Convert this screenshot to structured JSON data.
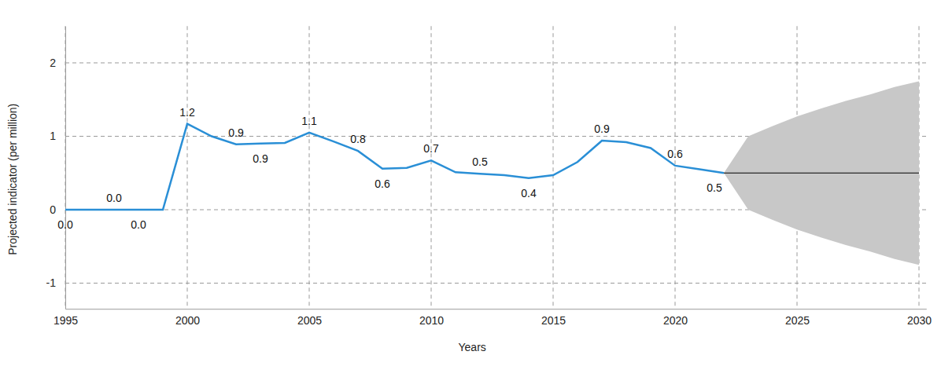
{
  "chart_data": {
    "type": "line",
    "x_label": "Years",
    "y_label": "Projected indicator (per million)",
    "x": [
      1995,
      1996,
      1997,
      1998,
      1999,
      2000,
      2001,
      2002,
      2003,
      2004,
      2005,
      2006,
      2007,
      2008,
      2009,
      2010,
      2011,
      2012,
      2013,
      2014,
      2015,
      2016,
      2017,
      2018,
      2019,
      2020,
      2021,
      2022,
      2023,
      2024,
      2025,
      2026,
      2027,
      2028,
      2029,
      2030
    ],
    "series": [
      {
        "color": "#2a8fd6",
        "line_style": "solid",
        "data_labels": true,
        "values": [
          0,
          0,
          0,
          0,
          0,
          1.17,
          1.0,
          0.89,
          0.9,
          0.91,
          1.05,
          0.93,
          0.8,
          0.56,
          0.57,
          0.67,
          0.51,
          0.49,
          0.47,
          0.43,
          0.47,
          0.65,
          0.94,
          0.92,
          0.84,
          0.6,
          0.55,
          0.5,
          null,
          null,
          null,
          null,
          null,
          null,
          null,
          null
        ],
        "value_labels": [
          "0.0",
          null,
          "0.0",
          "0.0",
          null,
          "1.2",
          null,
          "0.9",
          "0.9",
          null,
          "1.1",
          null,
          "0.8",
          "0.6",
          null,
          "0.7",
          null,
          "0.5",
          null,
          "0.4",
          null,
          null,
          "0.9",
          null,
          null,
          "0.6",
          null,
          "0.5",
          null,
          null,
          null,
          null,
          null,
          null,
          null,
          null
        ]
      },
      {
        "color": "#000000",
        "line_style": "solid",
        "values": [
          null,
          null,
          null,
          null,
          null,
          null,
          null,
          null,
          null,
          null,
          null,
          null,
          null,
          null,
          null,
          null,
          null,
          null,
          null,
          null,
          null,
          null,
          null,
          null,
          null,
          null,
          null,
          0.5,
          0.5,
          0.5,
          0.5,
          0.5,
          0.5,
          0.5,
          0.5,
          0.5
        ]
      }
    ],
    "band": {
      "color": "#c8c8c8",
      "lower": [
        null,
        null,
        null,
        null,
        null,
        null,
        null,
        null,
        null,
        null,
        null,
        null,
        null,
        null,
        null,
        null,
        null,
        null,
        null,
        null,
        null,
        null,
        null,
        null,
        null,
        null,
        null,
        0.5,
        0.0,
        -0.14,
        -0.27,
        -0.38,
        -0.48,
        -0.57,
        -0.67,
        -0.75
      ],
      "upper": [
        null,
        null,
        null,
        null,
        null,
        null,
        null,
        null,
        null,
        null,
        null,
        null,
        null,
        null,
        null,
        null,
        null,
        null,
        null,
        null,
        null,
        null,
        null,
        null,
        null,
        null,
        null,
        0.5,
        1.0,
        1.14,
        1.27,
        1.38,
        1.48,
        1.57,
        1.67,
        1.75
      ]
    },
    "xlim": [
      1995,
      2030.3
    ],
    "xticks": [
      1995,
      2000,
      2005,
      2010,
      2015,
      2020,
      2025,
      2030
    ],
    "ylim": [
      -1.35,
      2.5
    ],
    "yticks": [
      -1,
      0,
      1,
      2
    ],
    "grid": true
  }
}
